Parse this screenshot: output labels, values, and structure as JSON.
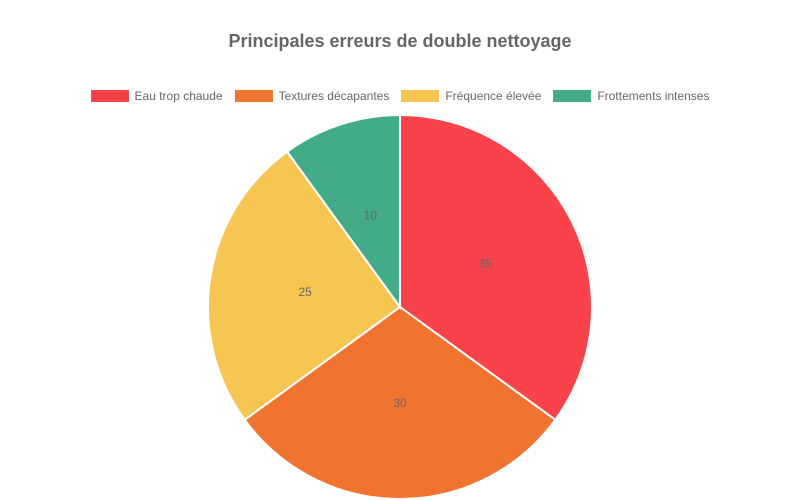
{
  "chart_data": {
    "type": "pie",
    "title": "Principales erreurs de double nettoyage",
    "legend_position": "top",
    "categories": [
      "Eau trop chaude",
      "Textures décapantes",
      "Fréquence élevée",
      "Frottements intenses"
    ],
    "values": [
      35,
      30,
      25,
      10
    ],
    "colors": [
      "#f94249",
      "#f0742f",
      "#f7c652",
      "#43ab89"
    ]
  }
}
